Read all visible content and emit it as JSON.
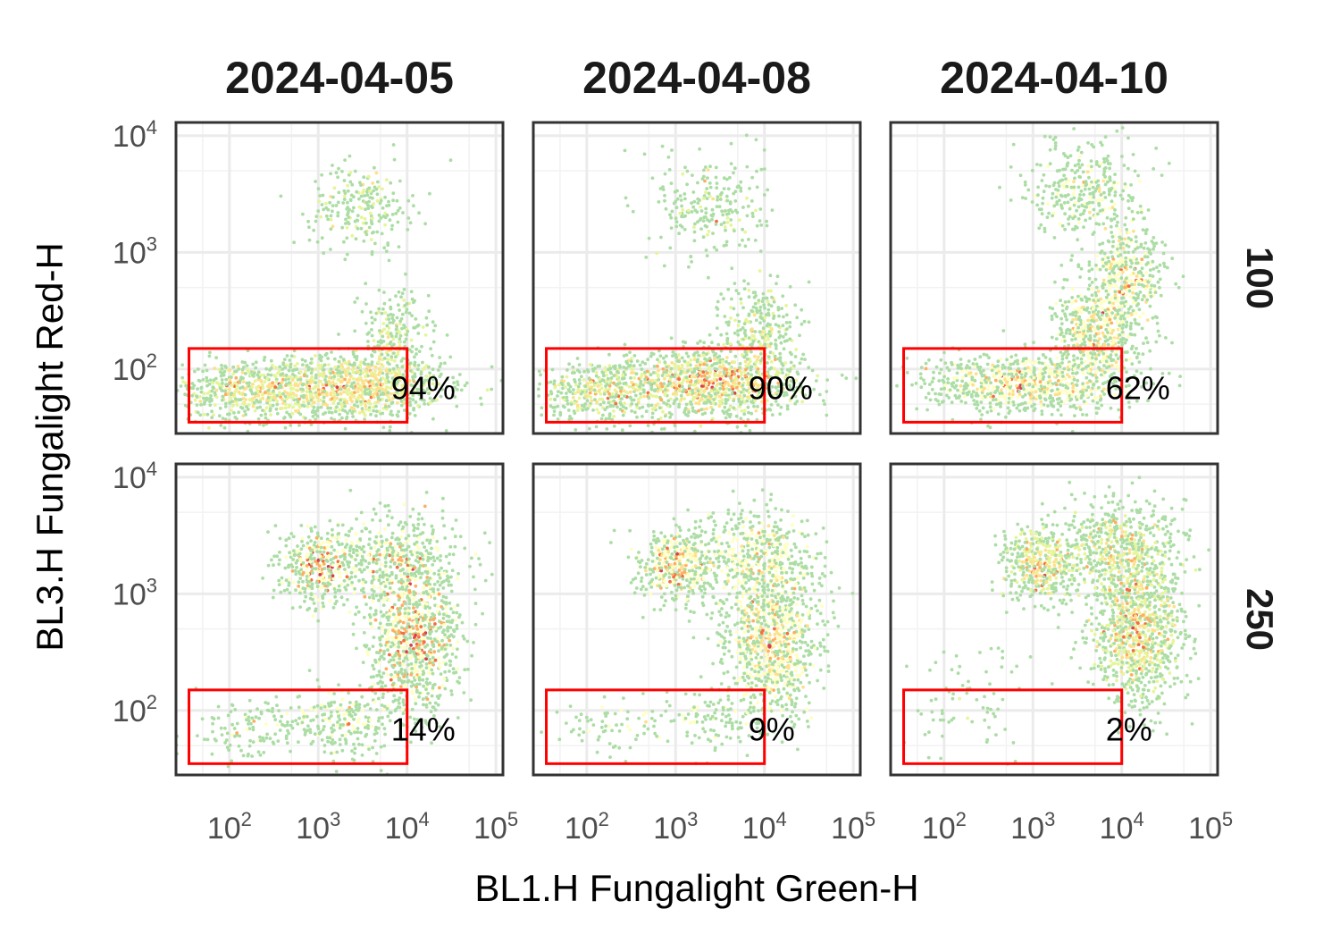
{
  "chart_data": {
    "type": "scatter",
    "subtype": "hexbin-density-facets",
    "xlabel": "BL1.H Fungalight Green-H",
    "ylabel": "BL3.H Fungalight Red-H",
    "x_scale": "log10",
    "y_scale": "log10",
    "xlim": [
      25,
      120000
    ],
    "ylim": [
      28,
      13000
    ],
    "x_ticks": [
      {
        "value": 100,
        "base": "10",
        "exp": "2"
      },
      {
        "value": 1000,
        "base": "10",
        "exp": "3"
      },
      {
        "value": 10000,
        "base": "10",
        "exp": "4"
      },
      {
        "value": 100000,
        "base": "10",
        "exp": "5"
      }
    ],
    "y_ticks": [
      {
        "value": 100,
        "base": "10",
        "exp": "2"
      },
      {
        "value": 1000,
        "base": "10",
        "exp": "3"
      },
      {
        "value": 10000,
        "base": "10",
        "exp": "4"
      }
    ],
    "columns": [
      "2024-04-05",
      "2024-04-08",
      "2024-04-10"
    ],
    "rows": [
      "100",
      "250"
    ],
    "grid": true,
    "gate": {
      "x": [
        35,
        10000
      ],
      "y": [
        35,
        150
      ]
    },
    "density_palette": [
      "#5E4FA2",
      "#3288BD",
      "#66C2A5",
      "#ABDDA4",
      "#E6F598",
      "#FFFFBF",
      "#FEE08B",
      "#FDAE61",
      "#F46D43",
      "#D53E4F",
      "#9E0142"
    ],
    "gate_color": "#FF0000",
    "panels": [
      {
        "column": "2024-04-05",
        "row": "100",
        "gate_percent": "94%",
        "clusters": [
          {
            "cx": 2000,
            "cy": 70,
            "sx": 0.55,
            "sy": 0.13,
            "w": 0.6
          },
          {
            "cx": 150,
            "cy": 65,
            "sx": 0.35,
            "sy": 0.12,
            "w": 0.2
          },
          {
            "cx": 3000,
            "cy": 2500,
            "sx": 0.28,
            "sy": 0.18,
            "w": 0.1
          },
          {
            "cx": 7000,
            "cy": 180,
            "sx": 0.2,
            "sy": 0.2,
            "w": 0.1
          }
        ]
      },
      {
        "column": "2024-04-08",
        "row": "100",
        "gate_percent": "90%",
        "clusters": [
          {
            "cx": 2500,
            "cy": 75,
            "sx": 0.5,
            "sy": 0.13,
            "w": 0.58
          },
          {
            "cx": 150,
            "cy": 65,
            "sx": 0.35,
            "sy": 0.12,
            "w": 0.2
          },
          {
            "cx": 2500,
            "cy": 2500,
            "sx": 0.3,
            "sy": 0.22,
            "w": 0.1
          },
          {
            "cx": 9000,
            "cy": 220,
            "sx": 0.2,
            "sy": 0.22,
            "w": 0.12
          }
        ]
      },
      {
        "column": "2024-04-10",
        "row": "100",
        "gate_percent": "62%",
        "clusters": [
          {
            "cx": 800,
            "cy": 75,
            "sx": 0.55,
            "sy": 0.12,
            "w": 0.4
          },
          {
            "cx": 5000,
            "cy": 200,
            "sx": 0.22,
            "sy": 0.2,
            "w": 0.25
          },
          {
            "cx": 4000,
            "cy": 3500,
            "sx": 0.3,
            "sy": 0.2,
            "w": 0.15
          },
          {
            "cx": 12000,
            "cy": 600,
            "sx": 0.2,
            "sy": 0.22,
            "w": 0.2
          }
        ]
      },
      {
        "column": "2024-04-05",
        "row": "250",
        "gate_percent": "14%",
        "clusters": [
          {
            "cx": 12000,
            "cy": 400,
            "sx": 0.25,
            "sy": 0.3,
            "w": 0.45
          },
          {
            "cx": 1000,
            "cy": 1700,
            "sx": 0.2,
            "sy": 0.15,
            "w": 0.2
          },
          {
            "cx": 8000,
            "cy": 2000,
            "sx": 0.35,
            "sy": 0.2,
            "w": 0.2
          },
          {
            "cx": 2000,
            "cy": 80,
            "sx": 0.3,
            "sy": 0.15,
            "w": 0.1
          },
          {
            "cx": 200,
            "cy": 70,
            "sx": 0.35,
            "sy": 0.12,
            "w": 0.05
          }
        ]
      },
      {
        "column": "2024-04-08",
        "row": "250",
        "gate_percent": "9%",
        "clusters": [
          {
            "cx": 12000,
            "cy": 400,
            "sx": 0.25,
            "sy": 0.3,
            "w": 0.48
          },
          {
            "cx": 1000,
            "cy": 1700,
            "sx": 0.2,
            "sy": 0.15,
            "w": 0.22
          },
          {
            "cx": 8000,
            "cy": 2000,
            "sx": 0.35,
            "sy": 0.2,
            "w": 0.22
          },
          {
            "cx": 3000,
            "cy": 90,
            "sx": 0.3,
            "sy": 0.15,
            "w": 0.05
          },
          {
            "cx": 200,
            "cy": 70,
            "sx": 0.35,
            "sy": 0.12,
            "w": 0.03
          }
        ]
      },
      {
        "column": "2024-04-10",
        "row": "250",
        "gate_percent": "2%",
        "clusters": [
          {
            "cx": 15000,
            "cy": 500,
            "sx": 0.25,
            "sy": 0.3,
            "w": 0.5
          },
          {
            "cx": 1200,
            "cy": 1800,
            "sx": 0.2,
            "sy": 0.15,
            "w": 0.22
          },
          {
            "cx": 10000,
            "cy": 2500,
            "sx": 0.35,
            "sy": 0.2,
            "w": 0.25
          },
          {
            "cx": 200,
            "cy": 120,
            "sx": 0.4,
            "sy": 0.25,
            "w": 0.03
          }
        ]
      }
    ]
  }
}
